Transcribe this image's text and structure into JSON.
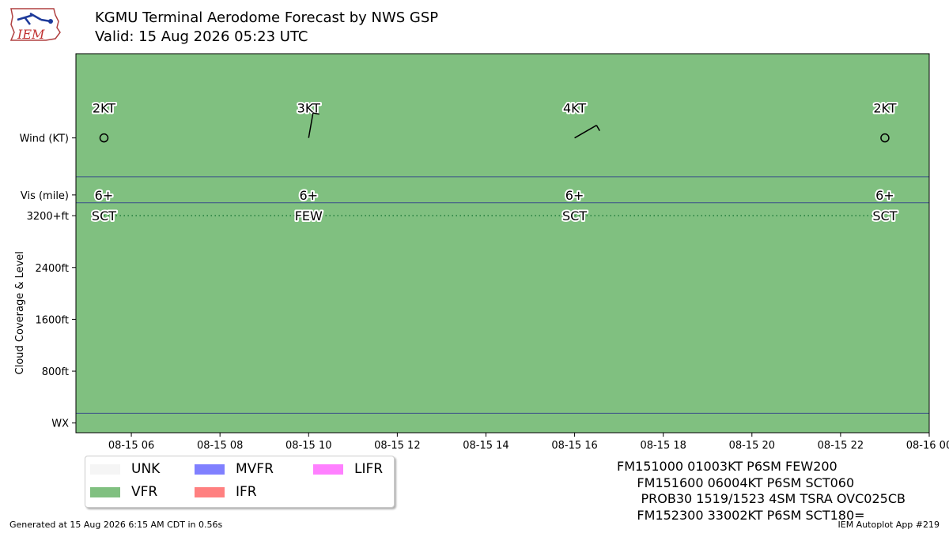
{
  "title": "KGMU Terminal Aerodome Forecast by NWS GSP",
  "subtitle": "Valid: 15 Aug 2026 05:23 UTC",
  "logo_text": "IEM",
  "footer_left": "Generated at 15 Aug 2026 6:15 AM CDT in 0.56s",
  "footer_right": "IEM Autoplot App #219",
  "taf_lines": [
    "FM151000 01003KT P6SM FEW200",
    "     FM151600 06004KT P6SM SCT060",
    "      PROB30 1519/1523 4SM TSRA OVC025CB",
    "     FM152300 33002KT P6SM SCT180="
  ],
  "legend": [
    {
      "label": "UNK",
      "color": "#f5f5f5"
    },
    {
      "label": "VFR",
      "color": "#80c080"
    },
    {
      "label": "MVFR",
      "color": "#8080ff"
    },
    {
      "label": "IFR",
      "color": "#ff8080"
    },
    {
      "label": "LIFR",
      "color": "#ff80ff"
    }
  ],
  "chart_data": {
    "type": "timeline",
    "background_category": "VFR",
    "background_color": "#80c080",
    "x_ticks": [
      "08-15 06",
      "08-15 08",
      "08-15 10",
      "08-15 12",
      "08-15 14",
      "08-15 16",
      "08-15 18",
      "08-15 20",
      "08-15 22",
      "08-16 00"
    ],
    "x_tick_hours": [
      6,
      8,
      10,
      12,
      14,
      16,
      18,
      20,
      22,
      24
    ],
    "xlim_hours": [
      4.75,
      24
    ],
    "y_tick_labels": [
      "Wind (KT)",
      "Vis (mile)",
      "3200+ft",
      "2400ft",
      "1600ft",
      "800ft",
      "WX"
    ],
    "y_tick_values": [
      4400,
      3520,
      3200,
      2400,
      1600,
      800,
      0
    ],
    "ylim": [
      -150,
      5700
    ],
    "row_separators": [
      3800,
      3400,
      150
    ],
    "ylabel": "Cloud Coverage & Level",
    "periods": [
      {
        "hour": 5.383,
        "wind_kt": "2KT",
        "wind_dir": 0,
        "wind_speed": 2,
        "vis": "6+",
        "cloud": "SCT",
        "cloud_level": 3200
      },
      {
        "hour": 10.0,
        "wind_kt": "3KT",
        "wind_dir": 10,
        "wind_speed": 3,
        "vis": "6+",
        "cloud": "FEW",
        "cloud_level": 3200
      },
      {
        "hour": 16.0,
        "wind_kt": "4KT",
        "wind_dir": 60,
        "wind_speed": 4,
        "vis": "6+",
        "cloud": "SCT",
        "cloud_level": 3200
      },
      {
        "hour": 23.0,
        "wind_kt": "2KT",
        "wind_dir": 330,
        "wind_speed": 2,
        "vis": "6+",
        "cloud": "SCT",
        "cloud_level": 3200
      }
    ]
  }
}
